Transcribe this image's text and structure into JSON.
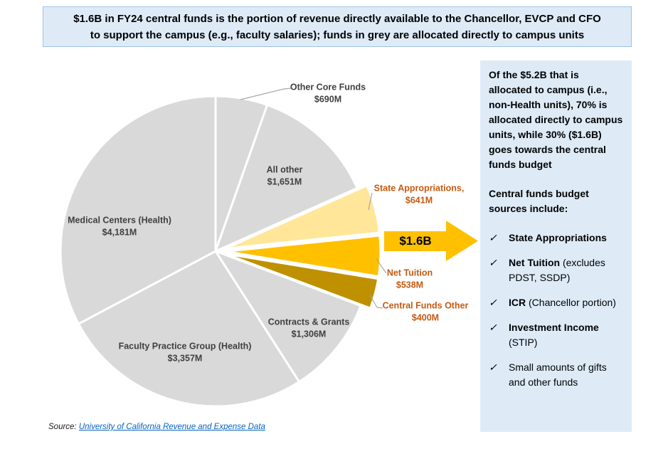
{
  "banner": {
    "line1": "$1.6B in FY24 central funds is the portion of revenue directly available to the Chancellor, EVCP and CFO",
    "line2": "to support the campus (e.g., faculty salaries); funds in grey are allocated directly to campus units"
  },
  "chart_data": {
    "type": "pie",
    "unit": "$M",
    "total": 12764,
    "start_angle_deg": 0,
    "direction": "clockwise",
    "callout_label": "$1.6B",
    "slices": [
      {
        "label": "Other Core Funds",
        "value": 690,
        "value_label": "$690M",
        "color": "#D9D9D9",
        "exploded": false
      },
      {
        "label": "All other",
        "value": 1651,
        "value_label": "$1,651M",
        "color": "#D9D9D9",
        "exploded": false
      },
      {
        "label": "State Appropriations,",
        "value": 641,
        "value_label": "$641M",
        "color": "#FFE699",
        "exploded": true
      },
      {
        "label": "Net Tuition",
        "value": 538,
        "value_label": "$538M",
        "color": "#FFC000",
        "exploded": true
      },
      {
        "label": "Central Funds Other",
        "value": 400,
        "value_label": "$400M",
        "color": "#BF9000",
        "exploded": true
      },
      {
        "label": "Contracts & Grants",
        "value": 1306,
        "value_label": "$1,306M",
        "color": "#D9D9D9",
        "exploded": false
      },
      {
        "label": "Faculty Practice Group (Health)",
        "value": 3357,
        "value_label": "$3,357M",
        "color": "#D9D9D9",
        "exploded": false
      },
      {
        "label": "Medical Centers (Health)",
        "value": 4181,
        "value_label": "$4,181M",
        "color": "#D9D9D9",
        "exploded": false
      }
    ]
  },
  "arrow": {
    "label": "$1.6B",
    "color": "#FFC000"
  },
  "sidebar": {
    "bg_color": "#DEEBF7",
    "para1": "Of the $5.2B that is allocated to campus (i.e., non-Health units), 70% is allocated directly to campus units, while 30% ($1.6B) goes towards the central funds budget",
    "para2": "Central funds budget sources include:",
    "check_glyph": "✓",
    "bullets": [
      {
        "bold": "State Appropriations",
        "rest": ""
      },
      {
        "bold": "Net Tuition",
        "rest": " (excludes PDST, SSDP)"
      },
      {
        "bold": "ICR",
        "rest": " (Chancellor portion)"
      },
      {
        "bold": "Investment Income",
        "rest": " (STIP)"
      },
      {
        "bold": "",
        "rest": "Small amounts of gifts and other funds"
      }
    ]
  },
  "source": {
    "prefix": "Source: ",
    "link_text": "University of California Revenue and Expense Data"
  }
}
